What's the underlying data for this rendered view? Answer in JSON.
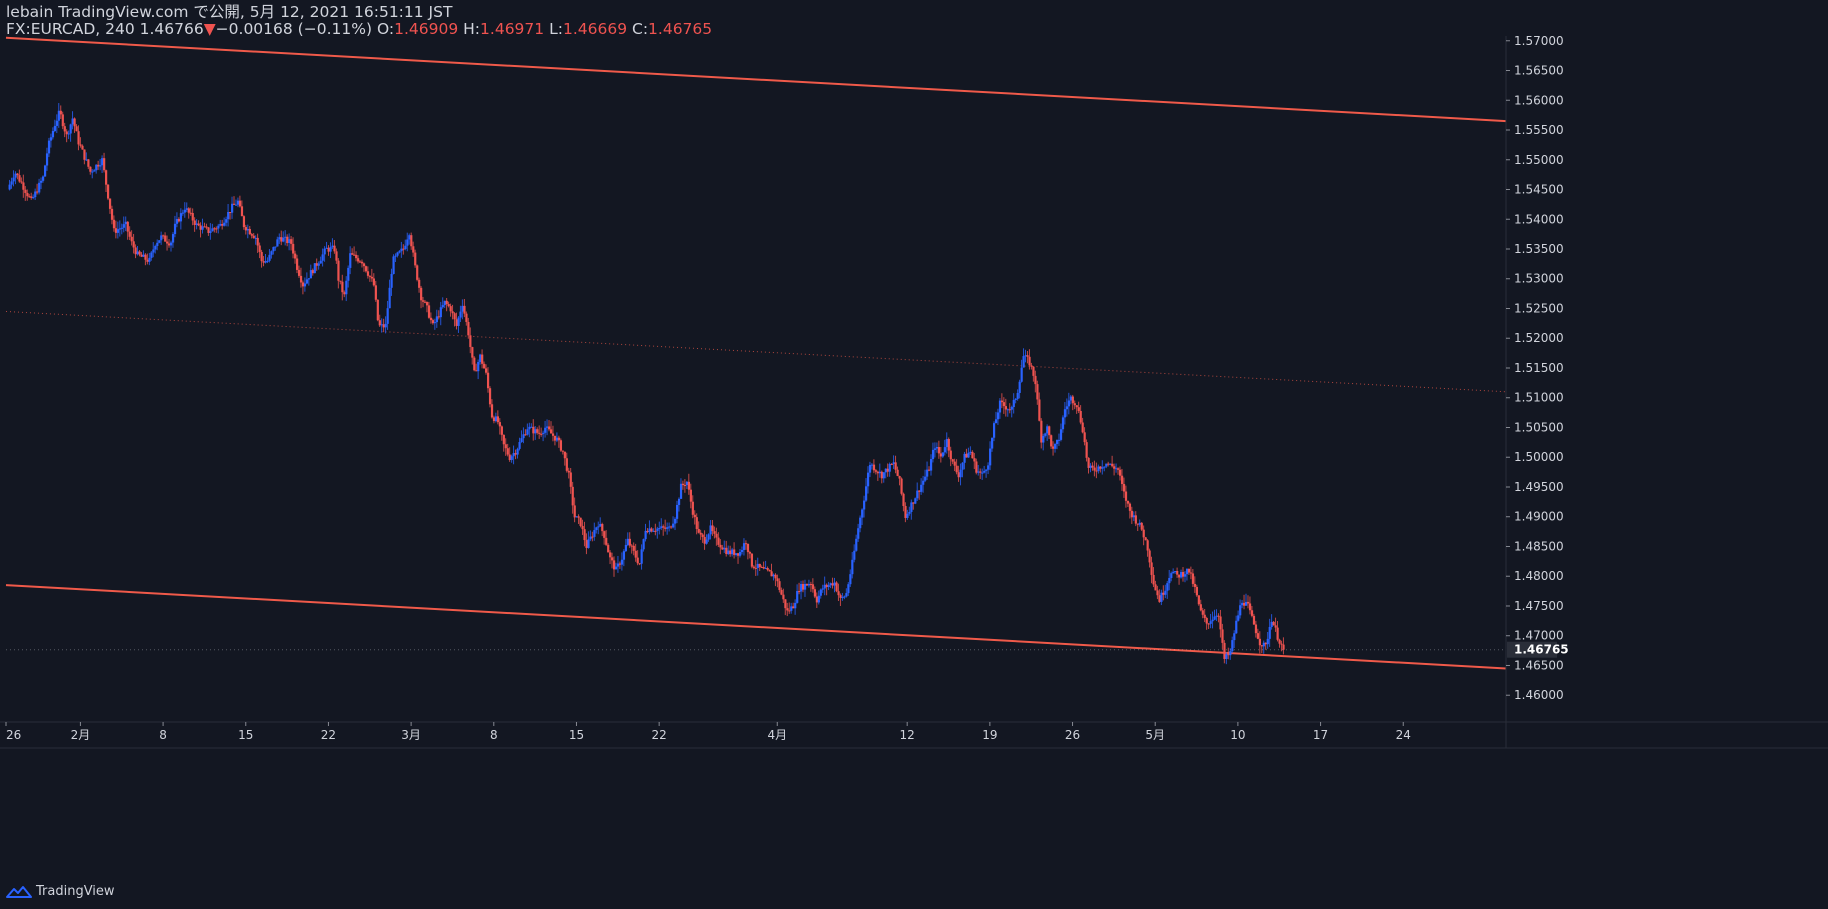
{
  "header": {
    "line1": "lebain TradingView.com で公開, 5月 12, 2021 16:51:11 JST",
    "symbol": "FX:EURCAD, 240",
    "last": "1.46766",
    "change_arrow": "▼",
    "change": "−0.00168 (−0.11%)",
    "o_label": "O:",
    "o_value": "1.46909",
    "h_label": "H:",
    "h_value": "1.46971",
    "l_label": "L:",
    "l_value": "1.46669",
    "c_label": "C:",
    "c_value": "1.46765"
  },
  "footer": {
    "brand": "TradingView"
  },
  "colors": {
    "background": "#131722",
    "up": "#2962ff",
    "down": "#ef5350",
    "trendline": "#f05a4a",
    "text": "#d1d4dc",
    "grid": "#2a2e39"
  },
  "chart_data": {
    "type": "candlestick",
    "symbol": "FX:EURCAD",
    "interval": "240",
    "ylim": [
      1.4555,
      1.5708
    ],
    "y_ticks": [
      "1.57000",
      "1.56500",
      "1.56000",
      "1.55500",
      "1.55000",
      "1.54500",
      "1.54000",
      "1.53500",
      "1.53000",
      "1.52500",
      "1.52000",
      "1.51500",
      "1.51000",
      "1.50500",
      "1.50000",
      "1.49500",
      "1.49000",
      "1.48500",
      "1.48000",
      "1.47500",
      "1.47000",
      "1.46500",
      "1.46000"
    ],
    "last_price_label": "1.46765",
    "last_price": 1.46765,
    "x_ticks": [
      {
        "label": "26",
        "day": -0.3
      },
      {
        "label": "2月",
        "day": 6
      },
      {
        "label": "8",
        "day": 13
      },
      {
        "label": "15",
        "day": 20
      },
      {
        "label": "22",
        "day": 27
      },
      {
        "label": "3月",
        "day": 34
      },
      {
        "label": "8",
        "day": 41
      },
      {
        "label": "15",
        "day": 48
      },
      {
        "label": "22",
        "day": 55
      },
      {
        "label": "4月",
        "day": 65
      },
      {
        "label": "12",
        "day": 76
      },
      {
        "label": "19",
        "day": 83
      },
      {
        "label": "26",
        "day": 90
      },
      {
        "label": "5月",
        "day": 97
      },
      {
        "label": "10",
        "day": 104
      },
      {
        "label": "17",
        "day": 111
      },
      {
        "label": "24",
        "day": 118
      }
    ],
    "x_range_days": [
      -0.3,
      126.7
    ],
    "price_path": [
      [
        0,
        1.545
      ],
      [
        0.6,
        1.548
      ],
      [
        1.2,
        1.546
      ],
      [
        2,
        1.543
      ],
      [
        3,
        1.547
      ],
      [
        3.4,
        1.552
      ],
      [
        4,
        1.556
      ],
      [
        4.4,
        1.558
      ],
      [
        5,
        1.554
      ],
      [
        5.5,
        1.557
      ],
      [
        6,
        1.553
      ],
      [
        7,
        1.548
      ],
      [
        8,
        1.55
      ],
      [
        8.5,
        1.544
      ],
      [
        9,
        1.538
      ],
      [
        10,
        1.539
      ],
      [
        10.5,
        1.536
      ],
      [
        11,
        1.534
      ],
      [
        12,
        1.533
      ],
      [
        12.5,
        1.536
      ],
      [
        13,
        1.537
      ],
      [
        13.8,
        1.536
      ],
      [
        14.2,
        1.539
      ],
      [
        15,
        1.542
      ],
      [
        16,
        1.539
      ],
      [
        17,
        1.538
      ],
      [
        18,
        1.539
      ],
      [
        19,
        1.542
      ],
      [
        19.5,
        1.543
      ],
      [
        20,
        1.539
      ],
      [
        21,
        1.537
      ],
      [
        21.5,
        1.533
      ],
      [
        22,
        1.533
      ],
      [
        23,
        1.537
      ],
      [
        24,
        1.536
      ],
      [
        24.5,
        1.532
      ],
      [
        25,
        1.529
      ],
      [
        26,
        1.532
      ],
      [
        27,
        1.535
      ],
      [
        27.7,
        1.535
      ],
      [
        28,
        1.53
      ],
      [
        28.5,
        1.527
      ],
      [
        29,
        1.534
      ],
      [
        30,
        1.533
      ],
      [
        31,
        1.529
      ],
      [
        31.4,
        1.522
      ],
      [
        32,
        1.522
      ],
      [
        32.6,
        1.533
      ],
      [
        33.5,
        1.535
      ],
      [
        34,
        1.538
      ],
      [
        34.5,
        1.532
      ],
      [
        35,
        1.527
      ],
      [
        35.5,
        1.525
      ],
      [
        36,
        1.522
      ],
      [
        37,
        1.526
      ],
      [
        37.5,
        1.525
      ],
      [
        38,
        1.522
      ],
      [
        38.5,
        1.526
      ],
      [
        39,
        1.521
      ],
      [
        39.5,
        1.514
      ],
      [
        40,
        1.517
      ],
      [
        40.5,
        1.514
      ],
      [
        41,
        1.507
      ],
      [
        41.5,
        1.506
      ],
      [
        42,
        1.502
      ],
      [
        42.5,
        1.5
      ],
      [
        43,
        1.501
      ],
      [
        43.5,
        1.503
      ],
      [
        44,
        1.505
      ],
      [
        45,
        1.504
      ],
      [
        45.5,
        1.505
      ],
      [
        46,
        1.504
      ],
      [
        46.5,
        1.503
      ],
      [
        47,
        1.501
      ],
      [
        47.5,
        1.497
      ],
      [
        48,
        1.49
      ],
      [
        48.5,
        1.489
      ],
      [
        49,
        1.485
      ],
      [
        49.5,
        1.487
      ],
      [
        50,
        1.489
      ],
      [
        50.5,
        1.487
      ],
      [
        51,
        1.483
      ],
      [
        51.5,
        1.481
      ],
      [
        52,
        1.483
      ],
      [
        52.5,
        1.486
      ],
      [
        53,
        1.484
      ],
      [
        53.5,
        1.482
      ],
      [
        54,
        1.488
      ],
      [
        55,
        1.488
      ],
      [
        56,
        1.488
      ],
      [
        56.5,
        1.49
      ],
      [
        57,
        1.495
      ],
      [
        57.5,
        1.496
      ],
      [
        58,
        1.491
      ],
      [
        58.5,
        1.487
      ],
      [
        59,
        1.486
      ],
      [
        59.5,
        1.488
      ],
      [
        60,
        1.486
      ],
      [
        61,
        1.484
      ],
      [
        62,
        1.484
      ],
      [
        62.5,
        1.486
      ],
      [
        63,
        1.482
      ],
      [
        64,
        1.481
      ],
      [
        65,
        1.48
      ],
      [
        65.5,
        1.477
      ],
      [
        66,
        1.474
      ],
      [
        66.5,
        1.475
      ],
      [
        67,
        1.478
      ],
      [
        68,
        1.479
      ],
      [
        68.5,
        1.476
      ],
      [
        69,
        1.478
      ],
      [
        70,
        1.479
      ],
      [
        70.5,
        1.476
      ],
      [
        71,
        1.477
      ],
      [
        71.5,
        1.482
      ],
      [
        72,
        1.488
      ],
      [
        72.5,
        1.493
      ],
      [
        73,
        1.499
      ],
      [
        73.5,
        1.498
      ],
      [
        74,
        1.497
      ],
      [
        75,
        1.499
      ],
      [
        75.5,
        1.496
      ],
      [
        76,
        1.49
      ],
      [
        76.5,
        1.492
      ],
      [
        77,
        1.494
      ],
      [
        77.5,
        1.496
      ],
      [
        78,
        1.498
      ],
      [
        78.5,
        1.502
      ],
      [
        79,
        1.5
      ],
      [
        79.5,
        1.503
      ],
      [
        80,
        1.499
      ],
      [
        80.5,
        1.497
      ],
      [
        81,
        1.5
      ],
      [
        81.5,
        1.501
      ],
      [
        82,
        1.498
      ],
      [
        82.5,
        1.497
      ],
      [
        83,
        1.499
      ],
      [
        83.5,
        1.505
      ],
      [
        84,
        1.509
      ],
      [
        85,
        1.508
      ],
      [
        85.5,
        1.511
      ],
      [
        86,
        1.517
      ],
      [
        86.5,
        1.516
      ],
      [
        87,
        1.513
      ],
      [
        87.5,
        1.503
      ],
      [
        88,
        1.505
      ],
      [
        88.5,
        1.501
      ],
      [
        89,
        1.503
      ],
      [
        89.5,
        1.508
      ],
      [
        90,
        1.51
      ],
      [
        90.5,
        1.509
      ],
      [
        91,
        1.505
      ],
      [
        91.5,
        1.498
      ],
      [
        92,
        1.498
      ],
      [
        93,
        1.499
      ],
      [
        94,
        1.498
      ],
      [
        94.5,
        1.494
      ],
      [
        95,
        1.491
      ],
      [
        96,
        1.488
      ],
      [
        96.5,
        1.485
      ],
      [
        97,
        1.479
      ],
      [
        97.5,
        1.476
      ],
      [
        98,
        1.478
      ],
      [
        98.5,
        1.481
      ],
      [
        99,
        1.48
      ],
      [
        100,
        1.481
      ],
      [
        100.5,
        1.478
      ],
      [
        101,
        1.474
      ],
      [
        101.5,
        1.472
      ],
      [
        102,
        1.473
      ],
      [
        102.5,
        1.474
      ],
      [
        103,
        1.466
      ],
      [
        103.5,
        1.467
      ],
      [
        104,
        1.472
      ],
      [
        104.5,
        1.476
      ],
      [
        105,
        1.475
      ],
      [
        105.5,
        1.472
      ],
      [
        106,
        1.469
      ],
      [
        106.5,
        1.468
      ],
      [
        107,
        1.473
      ],
      [
        107.5,
        1.47
      ],
      [
        108,
        1.4677
      ]
    ],
    "trendlines": [
      {
        "name": "upper-channel",
        "style": "solid",
        "points": [
          [
            -0.3,
            1.5705
          ],
          [
            126.7,
            1.5565
          ]
        ]
      },
      {
        "name": "middle-channel",
        "style": "dotted",
        "points": [
          [
            -0.3,
            1.5245
          ],
          [
            126.7,
            1.511
          ]
        ]
      },
      {
        "name": "lower-channel",
        "style": "solid",
        "points": [
          [
            -0.3,
            1.4785
          ],
          [
            126.7,
            1.4645
          ]
        ]
      }
    ]
  }
}
